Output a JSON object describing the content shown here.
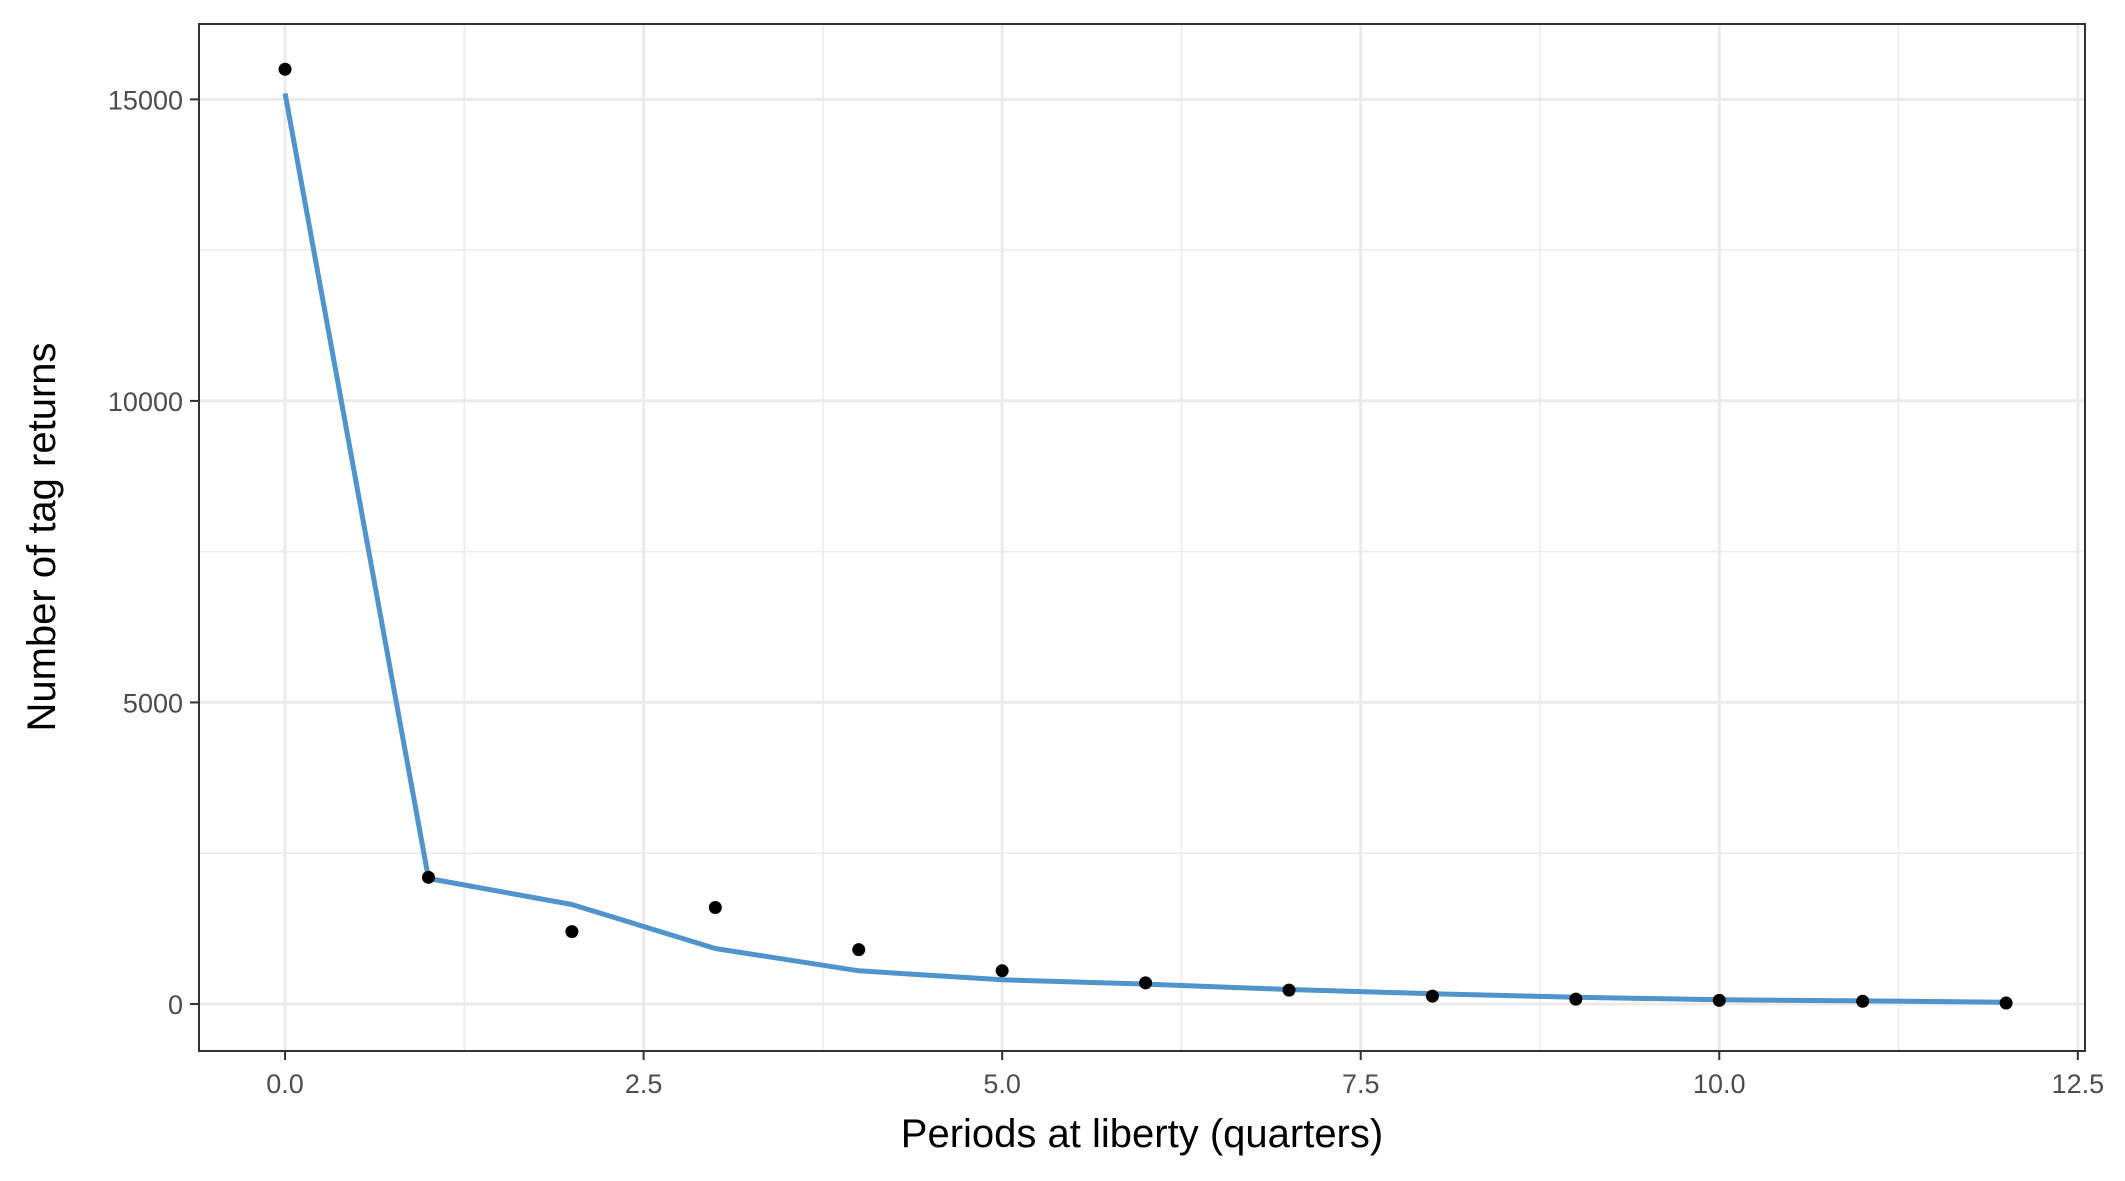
{
  "chart_data": {
    "type": "line",
    "xlabel": "Periods at liberty (quarters)",
    "ylabel": "Number of tag returns",
    "xlim": [
      -0.6,
      12.55
    ],
    "ylim": [
      -780,
      16250
    ],
    "x_ticks": [
      0,
      2.5,
      5,
      7.5,
      10,
      12.5
    ],
    "x_tick_labels": [
      "0.0",
      "2.5",
      "5.0",
      "7.5",
      "10.0",
      "12.5"
    ],
    "y_ticks": [
      0,
      5000,
      10000,
      15000
    ],
    "y_tick_labels": [
      "0",
      "5000",
      "10000",
      "15000"
    ],
    "grid": true,
    "legend": "none",
    "series": [
      {
        "kind": "points",
        "color": "#000000",
        "x": [
          0,
          1,
          2,
          3,
          4,
          5,
          6,
          7,
          8,
          9,
          10,
          11,
          12
        ],
        "y": [
          15500,
          2100,
          1200,
          1600,
          900,
          550,
          350,
          230,
          130,
          80,
          60,
          45,
          15
        ]
      },
      {
        "kind": "line",
        "color": "#4f94cd",
        "x": [
          0,
          1,
          2,
          3,
          4,
          5,
          6,
          7,
          8,
          9,
          10,
          11,
          12
        ],
        "y": [
          15100,
          2080,
          1650,
          920,
          550,
          400,
          330,
          240,
          170,
          110,
          70,
          50,
          30
        ]
      }
    ]
  }
}
